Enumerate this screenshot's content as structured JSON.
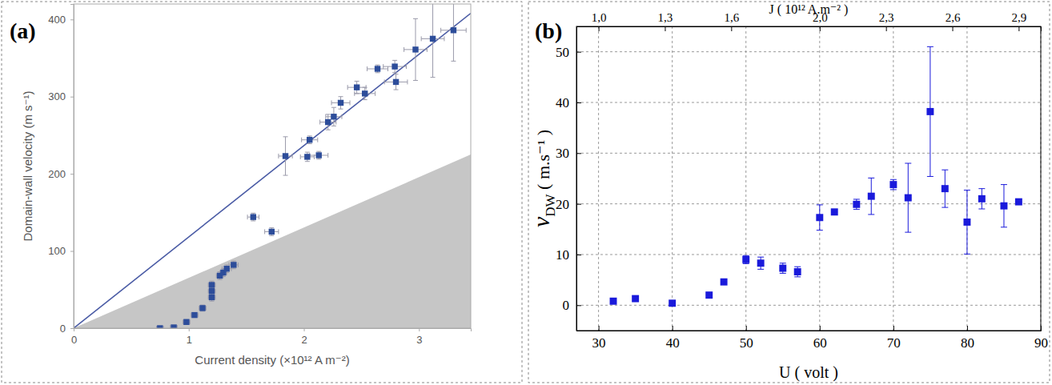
{
  "chart_data": [
    {
      "type": "scatter",
      "title": "(a)",
      "x_label": "Current density (×10¹² A m⁻²)",
      "y_label": "Domain-wall velocity (m s⁻¹)",
      "xlim": [
        0,
        3.45
      ],
      "ylim": [
        0,
        420
      ],
      "xticks": [
        0,
        1,
        2,
        3
      ],
      "yticks": [
        0,
        100,
        200,
        300,
        400
      ],
      "grid": false,
      "series": [
        {
          "type": "area",
          "color": "#c6c6c6",
          "x": [
            0,
            3.45
          ],
          "values": [
            0,
            225
          ]
        },
        {
          "type": "line",
          "color": "#4a5ba5",
          "x": [
            0,
            3.45
          ],
          "values": [
            0,
            408
          ]
        },
        {
          "type": "scatter",
          "color": "#2d4d9a",
          "marker": "square",
          "x": [
            0.75,
            0.87,
            0.98,
            1.05,
            1.12,
            1.2,
            1.2,
            1.2,
            1.27,
            1.3,
            1.33,
            1.39,
            1.56,
            1.72,
            1.84,
            2.03,
            2.05,
            2.13,
            2.21,
            2.26,
            2.32,
            2.46,
            2.53,
            2.64,
            2.79,
            2.8,
            2.97,
            3.12,
            3.3
          ],
          "values": [
            0,
            1,
            8,
            17,
            26,
            40,
            48,
            56,
            68,
            72,
            77,
            82,
            144,
            125,
            223,
            222,
            244,
            224,
            267,
            274,
            292,
            312,
            304,
            336,
            339,
            319,
            361,
            375,
            386
          ],
          "x_error": [
            0.03,
            0.03,
            0.03,
            0.03,
            0.03,
            0.03,
            0.03,
            0.03,
            0.03,
            0.03,
            0.04,
            0.04,
            0.05,
            0.06,
            0.06,
            0.06,
            0.07,
            0.08,
            0.07,
            0.07,
            0.08,
            0.08,
            0.09,
            0.09,
            0.1,
            0.1,
            0.1,
            0.1,
            0.11
          ],
          "error": [
            2,
            2,
            3,
            3,
            4,
            5,
            5,
            5,
            5,
            5,
            5,
            5,
            5,
            5,
            25,
            6,
            5,
            5,
            10,
            12,
            8,
            8,
            8,
            5,
            8,
            10,
            40,
            50,
            40
          ]
        }
      ]
    },
    {
      "type": "scatter",
      "title": "(b)",
      "x_label": "U ( volt )",
      "x2_label": "J ( 10¹² A.m⁻² )",
      "y_label": [
        "v",
        "DW",
        " ( m.s⁻¹ )"
      ],
      "xlim": [
        27,
        90
      ],
      "ylim": [
        -5,
        55
      ],
      "xticks": [
        30,
        40,
        50,
        60,
        70,
        80,
        90
      ],
      "yticks": [
        0,
        10,
        20,
        30,
        40,
        50
      ],
      "x2lim": [
        0.9,
        3.0
      ],
      "x2ticks": [
        {
          "value": 1.0,
          "label": "1,0"
        },
        {
          "value": 1.3,
          "label": "1,3"
        },
        {
          "value": 1.6,
          "label": "1,6"
        },
        {
          "value": 2.0,
          "label": "2,0"
        },
        {
          "value": 2.3,
          "label": "2,3"
        },
        {
          "value": 2.6,
          "label": "2,6"
        },
        {
          "value": 2.9,
          "label": "2,9"
        }
      ],
      "grid": true,
      "series": [
        {
          "type": "scatter",
          "color": "#1a1adb",
          "marker": "square",
          "x": [
            32,
            35,
            40,
            45,
            47,
            50,
            52,
            55,
            57,
            60,
            62,
            65,
            67,
            70,
            72,
            75,
            77,
            80,
            82,
            85,
            87
          ],
          "values": [
            0.8,
            1.3,
            0.4,
            2.0,
            4.6,
            9.0,
            8.3,
            7.3,
            6.6,
            17.3,
            18.4,
            19.9,
            21.5,
            23.8,
            21.2,
            38.2,
            23.0,
            16.4,
            21.0,
            19.6,
            20.4
          ],
          "error": [
            null,
            null,
            null,
            null,
            null,
            0.8,
            1.2,
            1.0,
            1.0,
            2.5,
            null,
            1.0,
            3.6,
            1.0,
            6.8,
            12.8,
            3.7,
            6.3,
            2.0,
            4.2,
            null
          ]
        }
      ]
    }
  ]
}
